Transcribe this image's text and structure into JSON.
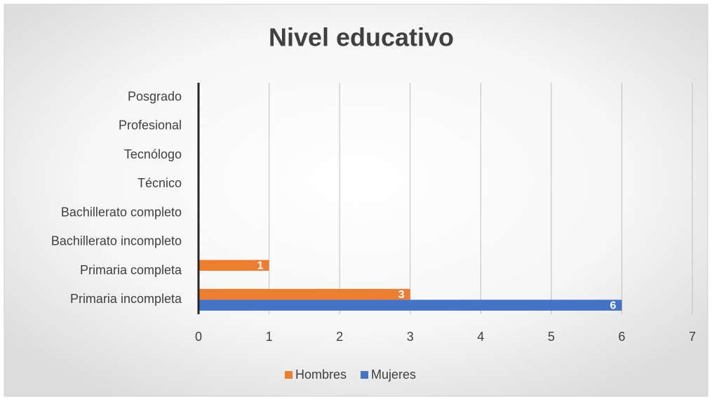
{
  "chart_data": {
    "type": "barh",
    "title": "Nivel educativo",
    "categories": [
      "Primaria incompleta",
      "Primaria completa",
      "Bachillerato incompleto",
      "Bachillerato completo",
      "Técnico",
      "Tecnólogo",
      "Profesional",
      "Posgrado"
    ],
    "series": [
      {
        "name": "Hombres",
        "color": "#ed7d31",
        "values": [
          3,
          1,
          0,
          0,
          0,
          0,
          0,
          0
        ]
      },
      {
        "name": "Mujeres",
        "color": "#4472c4",
        "values": [
          6,
          0,
          0,
          0,
          0,
          0,
          0,
          0
        ]
      }
    ],
    "xlim": [
      0,
      7
    ],
    "xticks": [
      0,
      1,
      2,
      3,
      4,
      5,
      6,
      7
    ],
    "grid": true,
    "legend": "bottom"
  }
}
